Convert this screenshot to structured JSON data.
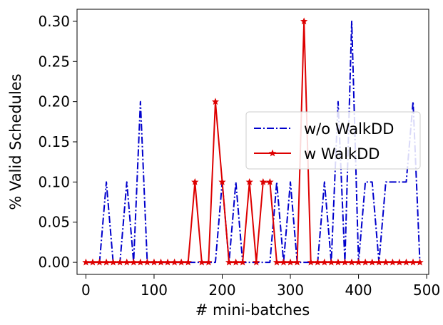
{
  "chart_data": {
    "type": "line",
    "title": "",
    "xlabel": "# mini-batches",
    "ylabel": "% Valid Schedules",
    "xlim": [
      -13,
      503
    ],
    "ylim": [
      -0.015,
      0.315
    ],
    "xticks": [
      0,
      100,
      200,
      300,
      400,
      500
    ],
    "yticks": [
      0.0,
      0.05,
      0.1,
      0.15,
      0.2,
      0.25,
      0.3
    ],
    "xtick_labels": [
      "0",
      "100",
      "200",
      "300",
      "400",
      "500"
    ],
    "ytick_labels": [
      "0.00",
      "0.05",
      "0.10",
      "0.15",
      "0.20",
      "0.25",
      "0.30"
    ],
    "grid": false,
    "legend_position": "center-right",
    "series": [
      {
        "name": "w/o WalkDD",
        "color": "#0000cc",
        "linestyle": "dashdot",
        "marker": "none",
        "x": [
          0,
          10,
          20,
          30,
          40,
          50,
          60,
          70,
          80,
          90,
          100,
          110,
          120,
          130,
          140,
          150,
          160,
          170,
          180,
          190,
          200,
          210,
          220,
          230,
          240,
          250,
          260,
          270,
          280,
          290,
          300,
          310,
          320,
          330,
          340,
          350,
          360,
          370,
          380,
          390,
          400,
          410,
          420,
          430,
          440,
          450,
          460,
          470,
          480,
          490
        ],
        "y": [
          0,
          0,
          0,
          0.1,
          0,
          0,
          0.1,
          0,
          0.2,
          0,
          0,
          0,
          0,
          0,
          0,
          0,
          0,
          0,
          0,
          0,
          0.1,
          0,
          0.1,
          0,
          0,
          0,
          0,
          0,
          0.1,
          0,
          0.1,
          0,
          0,
          0,
          0,
          0.1,
          0,
          0.2,
          0,
          0.3,
          0,
          0.1,
          0.1,
          0,
          0.1,
          0.1,
          0.1,
          0.1,
          0.2,
          0
        ]
      },
      {
        "name": "w WalkDD",
        "color": "#dd0000",
        "linestyle": "solid",
        "marker": "star",
        "x": [
          0,
          10,
          20,
          30,
          40,
          50,
          60,
          70,
          80,
          90,
          100,
          110,
          120,
          130,
          140,
          150,
          160,
          170,
          180,
          190,
          200,
          210,
          220,
          230,
          240,
          250,
          260,
          270,
          280,
          290,
          300,
          310,
          320,
          330,
          340,
          350,
          360,
          370,
          380,
          390,
          400,
          410,
          420,
          430,
          440,
          450,
          460,
          470,
          480,
          490
        ],
        "y": [
          0,
          0,
          0,
          0,
          0,
          0,
          0,
          0,
          0,
          0,
          0,
          0,
          0,
          0,
          0,
          0,
          0.1,
          0,
          0,
          0.2,
          0.1,
          0,
          0,
          0,
          0.1,
          0,
          0.1,
          0.1,
          0,
          0,
          0,
          0,
          0.3,
          0,
          0,
          0,
          0,
          0,
          0,
          0,
          0,
          0,
          0,
          0,
          0,
          0,
          0,
          0,
          0,
          0
        ]
      }
    ]
  }
}
